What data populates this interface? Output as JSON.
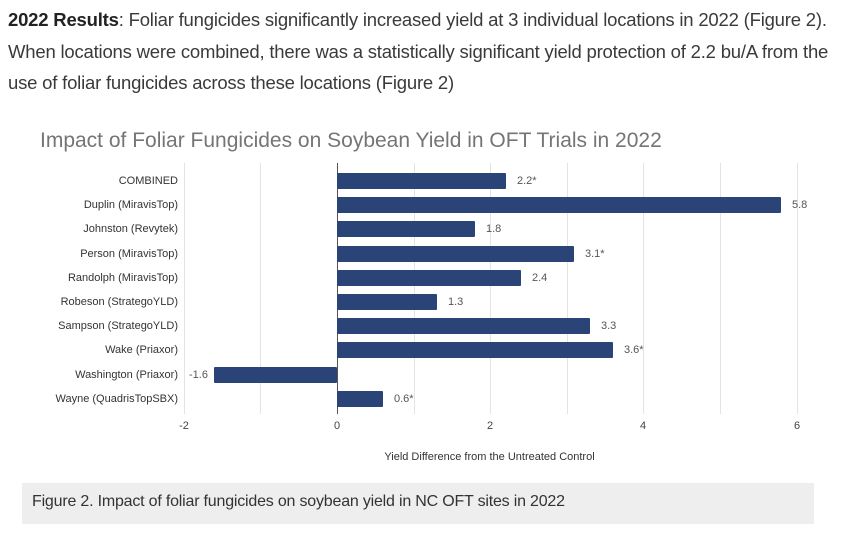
{
  "paragraph": {
    "bold_lead": "2022 Results",
    "text": ": Foliar fungicides significantly increased yield at 3 individual locations in 2022 (Figure 2). When locations were combined, there was a statistically significant yield protection of 2.2 bu/A from the use of foliar fungicides across these locations (Figure 2)"
  },
  "caption": "Figure 2. Impact of foliar fungicides on soybean yield in NC OFT sites in 2022",
  "chart_data": {
    "type": "bar",
    "orientation": "horizontal",
    "title": "Impact of Foliar Fungicides on Soybean Yield in OFT Trials in 2022",
    "xlabel": "Yield Difference from the Untreated Control",
    "ylabel": "",
    "xlim": [
      -2,
      6
    ],
    "x_ticks": [
      "-2",
      "0",
      "2",
      "4",
      "6"
    ],
    "grid": true,
    "legend": "none",
    "bar_color": "#2b4478",
    "categories": [
      "COMBINED",
      "Duplin (MiravisTop)",
      "Johnston (Revytek)",
      "Person (MiravisTop)",
      "Randolph (MiravisTop)",
      "Robeson (StrategoYLD)",
      "Sampson (StrategoYLD)",
      "Wake (Priaxor)",
      "Washington (Priaxor)",
      "Wayne (QuadrisTopSBX)"
    ],
    "values": [
      2.2,
      5.8,
      1.8,
      3.1,
      2.4,
      1.3,
      3.3,
      3.6,
      -1.6,
      0.6
    ],
    "data_labels": [
      "2.2*",
      "5.8",
      "1.8",
      "3.1*",
      "2.4",
      "1.3",
      "3.3",
      "3.6*",
      "-1.6",
      "0.6*"
    ]
  }
}
